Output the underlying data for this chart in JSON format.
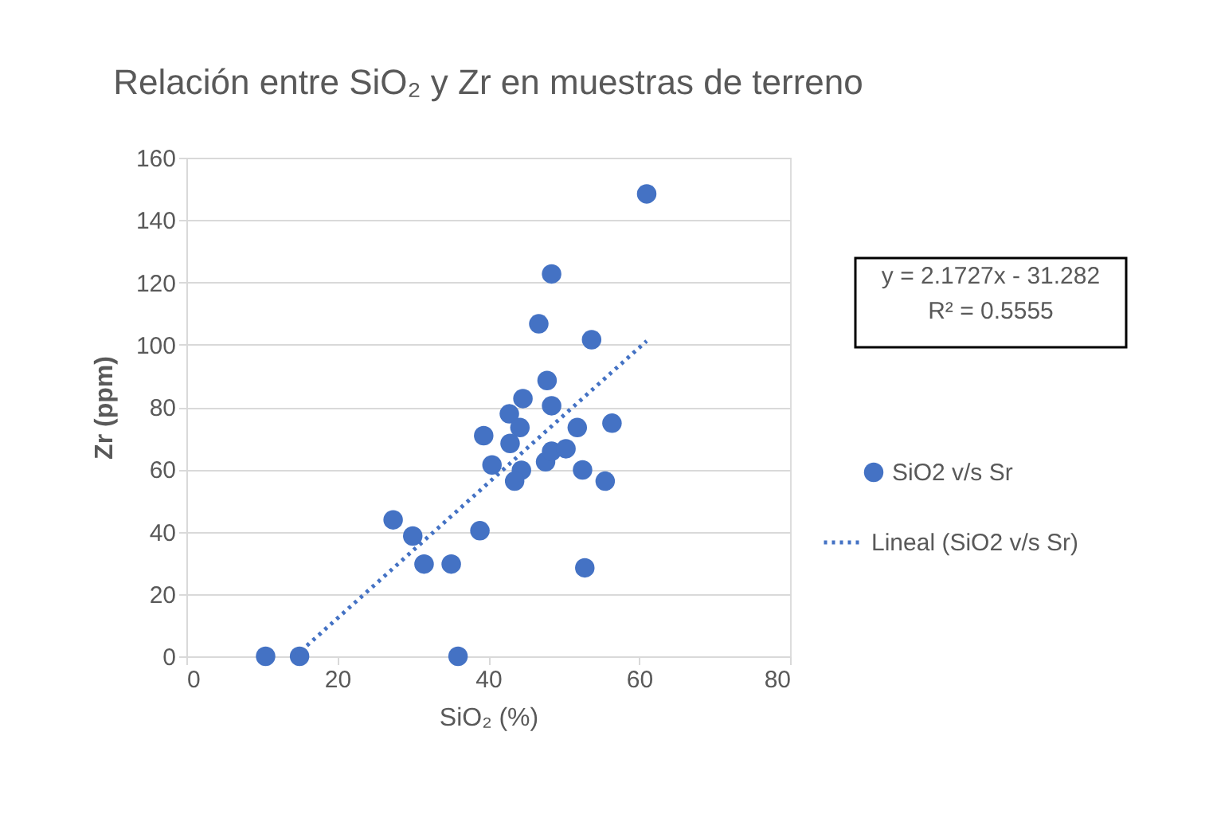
{
  "chart_data": {
    "type": "scatter",
    "title": "Relación entre SiO₂ y Zr en muestras de terreno",
    "xlabel": "SiO₂ (%)",
    "ylabel": "Zr (ppm)",
    "xlim": [
      0,
      80
    ],
    "xticks": [
      0,
      20,
      40,
      60,
      80
    ],
    "ylim": [
      0,
      160
    ],
    "yticks": [
      0,
      20,
      40,
      60,
      80,
      100,
      120,
      140,
      160
    ],
    "grid": "y",
    "legend": "right",
    "annotations": [
      "y = 2.1727x - 31.282",
      "R² = 0.5555"
    ],
    "series": [
      {
        "name": "SiO2 v/s Sr",
        "marker": "circle",
        "color": "#4472c4",
        "x": [
          10.5,
          15.0,
          36.0,
          27.4,
          30.0,
          31.5,
          35.1,
          38.9,
          39.4,
          40.5,
          61.0,
          48.4,
          46.7,
          53.7,
          47.8,
          44.6,
          42.8,
          48.4,
          44.2,
          42.9,
          51.8,
          56.4,
          44.4,
          43.5,
          47.6,
          48.4,
          50.3,
          52.5,
          55.5,
          52.8
        ],
        "values": [
          0,
          0,
          0,
          43.8,
          38.6,
          29.6,
          29.6,
          40.3,
          70.8,
          61.4,
          148.4,
          122.7,
          106.7,
          101.6,
          88.5,
          82.7,
          77.8,
          80.4,
          73.4,
          68.3,
          73.4,
          74.8,
          59.7,
          56.2,
          62.4,
          65.8,
          66.6,
          59.8,
          56.2,
          28.4
        ]
      },
      {
        "name": "Lineal (SiO2 v/s Sr)",
        "type": "line",
        "line_style": "dotted",
        "color": "#4472c4",
        "x": [
          14.4,
          61.0
        ],
        "values": [
          0,
          101.2
        ]
      }
    ]
  }
}
